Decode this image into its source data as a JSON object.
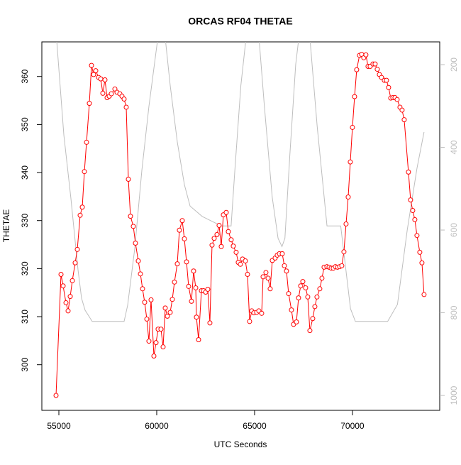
{
  "chart_data": {
    "type": "line",
    "title": "ORCAS RF04 THETAE",
    "xlabel": "UTC Seconds",
    "ylabel": "THETAE",
    "xlim": [
      54130,
      74460
    ],
    "ylim": [
      290.5,
      367.2
    ],
    "y2lim": [
      1036,
      145
    ],
    "xticks": [
      55000,
      60000,
      65000,
      70000
    ],
    "yticks": [
      300,
      310,
      320,
      330,
      340,
      350,
      360
    ],
    "y2ticks": [
      200,
      400,
      600,
      800,
      1000
    ],
    "series": [
      {
        "color": "#ff0000",
        "marker": "circle-open",
        "x": [
          54855,
          55109,
          55217,
          55362,
          55471,
          55580,
          55688,
          55833,
          55942,
          56087,
          56196,
          56304,
          56413,
          56558,
          56667,
          56775,
          56884,
          57029,
          57138,
          57246,
          57355,
          57464,
          57572,
          57681,
          57862,
          57971,
          58116,
          58225,
          58333,
          58442,
          58551,
          58659,
          58804,
          58913,
          59058,
          59167,
          59275,
          59384,
          59493,
          59601,
          59710,
          59855,
          59964,
          60072,
          60217,
          60326,
          60435,
          60543,
          60688,
          60797,
          60906,
          61051,
          61159,
          61304,
          61413,
          61522,
          61630,
          61775,
          61884,
          61993,
          62029,
          62138,
          62283,
          62391,
          62500,
          62609,
          62717,
          62826,
          62935,
          63080,
          63188,
          63297,
          63406,
          63551,
          63659,
          63804,
          63913,
          64058,
          64167,
          64275,
          64384,
          64529,
          64638,
          64746,
          64855,
          64964,
          65109,
          65217,
          65362,
          65435,
          65580,
          65688,
          65797,
          65906,
          66051,
          66159,
          66268,
          66413,
          66522,
          66630,
          66739,
          66884,
          66993,
          67138,
          67246,
          67355,
          67464,
          67609,
          67717,
          67826,
          67971,
          68080,
          68188,
          68333,
          68442,
          68551,
          68696,
          68804,
          68913,
          69022,
          69130,
          69239,
          69348,
          69457,
          69565,
          69674,
          69783,
          69891,
          70000,
          70109,
          70217,
          70362,
          70471,
          70580,
          70688,
          70797,
          70906,
          71051,
          71159,
          71268,
          71377,
          71486,
          71630,
          71739,
          71848,
          71957,
          72065,
          72174,
          72283,
          72428,
          72536,
          72645,
          72862,
          72971,
          73080,
          73188,
          73297,
          73442,
          73551,
          73659
        ],
        "values": [
          293.6,
          318.8,
          316.4,
          312.9,
          311.2,
          314.2,
          317.5,
          321.2,
          324.0,
          331.1,
          332.8,
          340.2,
          346.3,
          354.4,
          362.3,
          360.4,
          361.2,
          359.8,
          359.5,
          356.5,
          359.3,
          355.6,
          355.9,
          356.4,
          357.4,
          356.7,
          356.4,
          355.9,
          355.3,
          353.6,
          338.6,
          330.9,
          328.8,
          325.3,
          321.6,
          318.9,
          315.8,
          313.0,
          309.5,
          304.9,
          313.5,
          301.8,
          304.6,
          307.4,
          307.4,
          303.7,
          311.8,
          310.1,
          310.9,
          313.6,
          317.2,
          321.0,
          328.0,
          330.0,
          326.2,
          321.4,
          316.3,
          313.2,
          319.5,
          316.0,
          309.9,
          305.2,
          315.4,
          315.4,
          315.1,
          315.7,
          308.7,
          324.9,
          326.3,
          327.1,
          329.0,
          324.6,
          331.2,
          331.7,
          327.7,
          326.0,
          324.7,
          323.4,
          321.3,
          320.9,
          322.0,
          321.6,
          318.8,
          309.0,
          311.2,
          310.8,
          310.9,
          311.2,
          310.7,
          318.3,
          319.2,
          318.0,
          315.8,
          321.7,
          322.2,
          322.8,
          323.1,
          323.1,
          320.6,
          319.5,
          314.8,
          311.4,
          308.4,
          308.9,
          313.9,
          316.4,
          317.3,
          316.0,
          314.1,
          307.1,
          309.6,
          312.1,
          314.1,
          315.8,
          318.0,
          320.3,
          320.4,
          320.3,
          320.1,
          320.1,
          320.4,
          320.3,
          320.4,
          320.6,
          323.5,
          329.3,
          334.9,
          342.2,
          349.4,
          355.8,
          361.4,
          364.4,
          364.6,
          363.9,
          364.5,
          362.1,
          362.1,
          362.6,
          362.6,
          361.5,
          360.4,
          359.8,
          359.2,
          359.2,
          357.7,
          355.5,
          355.6,
          355.6,
          355.2,
          353.6,
          353.0,
          351.0,
          340.1,
          334.3,
          332.1,
          330.2,
          326.9,
          323.4,
          321.2,
          314.6
        ]
      },
      {
        "color": "#bebebe",
        "axis": "y2",
        "x": [
          54855,
          55254,
          55616,
          55978,
          56159,
          56341,
          56703,
          58333,
          58514,
          58877,
          59239,
          59601,
          60100,
          60400,
          60688,
          61051,
          61413,
          61703,
          62319,
          62700,
          63300,
          63800,
          64000,
          64300,
          64600,
          65200,
          65500,
          65900,
          66200,
          66400,
          66550,
          66800,
          67100,
          67300,
          67800,
          68200,
          68700,
          69400,
          69900,
          70150,
          71800,
          72300,
          72800,
          73300,
          73659
        ],
        "values": [
          120,
          370,
          524,
          696,
          765,
          794,
          821,
          821,
          782,
          645,
          456,
          301,
          120,
          120,
          250,
          387,
          490,
          542,
          567,
          576,
          590,
          590,
          450,
          250,
          120,
          120,
          300,
          520,
          620,
          640,
          620,
          420,
          200,
          120,
          120,
          350,
          590,
          590,
          790,
          821,
          821,
          780,
          600,
          450,
          363
        ]
      }
    ]
  }
}
